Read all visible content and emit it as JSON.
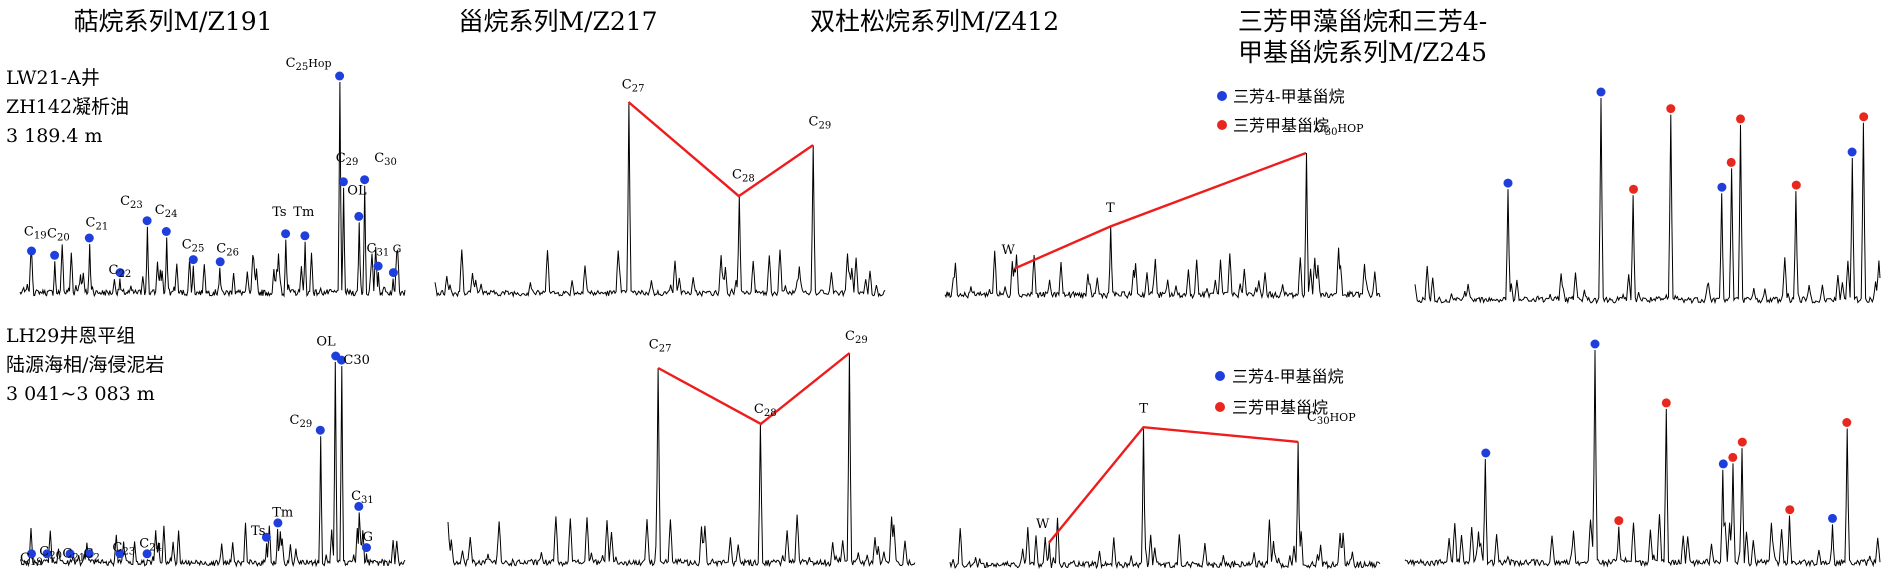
{
  "colors": {
    "trace": "#000000",
    "marker_blue": "#1f3fdc",
    "marker_red": "#e8281e",
    "connector": "#ee1c1c"
  },
  "titles": {
    "terpane": "萜烷系列M/Z191",
    "sterane": "甾烷系列M/Z217",
    "diginane": "双杜松烷系列M/Z412",
    "triaromatic_line1": "三芳甲藻甾烷和三芳4-",
    "triaromatic_line2": "甲基甾烷系列M/Z245"
  },
  "samples": [
    {
      "line1": "LW21-A井",
      "line2": "ZH142凝析油",
      "line3": "3 189.4 m"
    },
    {
      "line1": "LH29井恩平组",
      "line2": "陆源海相/海侵泥岩",
      "line3": "3 041~3 083 m"
    }
  ],
  "legend": {
    "blue_label": "三芳4-甲基甾烷",
    "red_label": "三芳甲基甾烷"
  },
  "chart_data": [
    {
      "type": "line",
      "sample": 0,
      "panel": "terpane",
      "peaks": [
        {
          "name": "C19",
          "x": 0.03,
          "y": 0.19
        },
        {
          "name": "C20",
          "x": 0.09,
          "y": 0.17
        },
        {
          "name": "C21",
          "x": 0.18,
          "y": 0.25
        },
        {
          "name": "C22",
          "x": 0.26,
          "y": 0.09
        },
        {
          "name": "C23",
          "x": 0.33,
          "y": 0.33
        },
        {
          "name": "C24",
          "x": 0.38,
          "y": 0.28
        },
        {
          "name": "C25",
          "x": 0.45,
          "y": 0.15
        },
        {
          "name": "C26",
          "x": 0.52,
          "y": 0.14
        },
        {
          "name": "Ts",
          "x": 0.69,
          "y": 0.27
        },
        {
          "name": "Tm",
          "x": 0.74,
          "y": 0.26
        },
        {
          "name": "C29",
          "x": 0.84,
          "y": 0.51
        },
        {
          "name": "OL",
          "x": 0.88,
          "y": 0.35
        },
        {
          "name": "C30",
          "x": 0.895,
          "y": 0.52
        },
        {
          "name": "C25Hop",
          "x": 0.83,
          "y": 1.0
        },
        {
          "name": "C31",
          "x": 0.93,
          "y": 0.12
        },
        {
          "name": "G",
          "x": 0.97,
          "y": 0.09
        }
      ],
      "labels": [
        {
          "text": "C",
          "sub": "19",
          "x": 0.01,
          "y": 0.29
        },
        {
          "text": "C",
          "sub": "20",
          "x": 0.07,
          "y": 0.28
        },
        {
          "text": "C",
          "sub": "21",
          "x": 0.17,
          "y": 0.33
        },
        {
          "text": "C",
          "sub": "22",
          "x": 0.23,
          "y": 0.11
        },
        {
          "text": "C",
          "sub": "23",
          "x": 0.26,
          "y": 0.43
        },
        {
          "text": "C",
          "sub": "24",
          "x": 0.35,
          "y": 0.39
        },
        {
          "text": "C",
          "sub": "25",
          "x": 0.42,
          "y": 0.23
        },
        {
          "text": "C",
          "sub": "26",
          "x": 0.51,
          "y": 0.21
        },
        {
          "text": "Ts",
          "x": 0.655,
          "y": 0.38
        },
        {
          "text": "Tm",
          "x": 0.71,
          "y": 0.38
        },
        {
          "text": "C",
          "sub": "25",
          "tail": "Hop",
          "x": 0.69,
          "y": 1.07
        },
        {
          "text": "C",
          "sub": "29",
          "x": 0.82,
          "y": 0.63
        },
        {
          "text": "C",
          "sub": "30",
          "x": 0.92,
          "y": 0.63
        },
        {
          "text": "OL",
          "x": 0.85,
          "y": 0.48
        },
        {
          "text": "C",
          "sub": "31",
          "tail": " G",
          "x": 0.9,
          "y": 0.21
        }
      ]
    },
    {
      "type": "line",
      "sample": 0,
      "panel": "sterane",
      "peaks": [
        {
          "name": "C27",
          "x": 0.43,
          "y": 1.0
        },
        {
          "name": "C28",
          "x": 0.675,
          "y": 0.52
        },
        {
          "name": "C29",
          "x": 0.84,
          "y": 0.78
        }
      ],
      "connector": true,
      "labels": [
        {
          "text": "C",
          "sub": "27",
          "x": 0.415,
          "y": 1.07
        },
        {
          "text": "C",
          "sub": "28",
          "x": 0.66,
          "y": 0.61
        },
        {
          "text": "C",
          "sub": "29",
          "x": 0.83,
          "y": 0.88
        }
      ]
    },
    {
      "type": "line",
      "sample": 0,
      "panel": "diginane",
      "peaks": [
        {
          "name": "W",
          "x": 0.16,
          "y": 0.15
        },
        {
          "name": "T",
          "x": 0.38,
          "y": 0.35
        },
        {
          "name": "C30HOP",
          "x": 0.83,
          "y": 0.7
        }
      ],
      "connector": true,
      "labels": [
        {
          "text": "W",
          "x": 0.13,
          "y": 0.22
        },
        {
          "text": "T",
          "x": 0.37,
          "y": 0.42
        },
        {
          "text": "C",
          "sub": "30",
          "tail": "HOP",
          "x": 0.85,
          "y": 0.8
        }
      ]
    },
    {
      "type": "line",
      "sample": 0,
      "panel": "triaromatic",
      "peaks": [
        {
          "name": "p1",
          "x": 0.2,
          "y": 0.56,
          "color": "blue"
        },
        {
          "name": "p2",
          "x": 0.4,
          "y": 1.0,
          "color": "blue"
        },
        {
          "name": "p3",
          "x": 0.47,
          "y": 0.53,
          "color": "red"
        },
        {
          "name": "p4",
          "x": 0.55,
          "y": 0.92,
          "color": "red"
        },
        {
          "name": "p5",
          "x": 0.66,
          "y": 0.54,
          "color": "blue"
        },
        {
          "name": "p6",
          "x": 0.68,
          "y": 0.66,
          "color": "red"
        },
        {
          "name": "p7",
          "x": 0.7,
          "y": 0.87,
          "color": "red"
        },
        {
          "name": "p8",
          "x": 0.82,
          "y": 0.55,
          "color": "red"
        },
        {
          "name": "p9",
          "x": 0.94,
          "y": 0.71,
          "color": "blue"
        },
        {
          "name": "p10",
          "x": 0.965,
          "y": 0.88,
          "color": "red"
        }
      ]
    },
    {
      "type": "line",
      "sample": 1,
      "panel": "terpane",
      "peaks": [
        {
          "name": "C19",
          "x": 0.03,
          "y": 0.04
        },
        {
          "name": "C20",
          "x": 0.07,
          "y": 0.04
        },
        {
          "name": "C21",
          "x": 0.13,
          "y": 0.04
        },
        {
          "name": "C22",
          "x": 0.18,
          "y": 0.04
        },
        {
          "name": "C23",
          "x": 0.26,
          "y": 0.04
        },
        {
          "name": "C24",
          "x": 0.33,
          "y": 0.04
        },
        {
          "name": "Ts",
          "x": 0.64,
          "y": 0.12
        },
        {
          "name": "Tm",
          "x": 0.67,
          "y": 0.19
        },
        {
          "name": "C29",
          "x": 0.78,
          "y": 0.64
        },
        {
          "name": "OL",
          "x": 0.82,
          "y": 1.0
        },
        {
          "name": "C30",
          "x": 0.835,
          "y": 0.98
        },
        {
          "name": "C31",
          "x": 0.88,
          "y": 0.27
        },
        {
          "name": "G",
          "x": 0.9,
          "y": 0.07
        }
      ],
      "labels": [
        {
          "text": "C",
          "sub": "19",
          "x": 0.0,
          "y": 0.03
        },
        {
          "text": "C",
          "sub": "20",
          "x": 0.05,
          "y": 0.06
        },
        {
          "text": "C",
          "sub": "21",
          "x": 0.11,
          "y": 0.05
        },
        {
          "text": "C",
          "sub": "2",
          "x": 0.165,
          "y": 0.05
        },
        {
          "text": "C",
          "sub": "23",
          "x": 0.24,
          "y": 0.08
        },
        {
          "text": "C",
          "sub": "24",
          "x": 0.31,
          "y": 0.1
        },
        {
          "text": "Ts",
          "x": 0.6,
          "y": 0.16
        },
        {
          "text": "Tm",
          "x": 0.655,
          "y": 0.25
        },
        {
          "text": "C",
          "sub": "29",
          "x": 0.7,
          "y": 0.7
        },
        {
          "text": "OL",
          "x": 0.77,
          "y": 1.08
        },
        {
          "text": "C30",
          "x": 0.84,
          "y": 0.99
        },
        {
          "text": "C",
          "sub": "31",
          "x": 0.86,
          "y": 0.33
        },
        {
          "text": "G",
          "x": 0.89,
          "y": 0.13
        }
      ]
    },
    {
      "type": "line",
      "sample": 1,
      "panel": "sterane",
      "peaks": [
        {
          "name": "C27",
          "x": 0.45,
          "y": 0.93
        },
        {
          "name": "C28",
          "x": 0.67,
          "y": 0.67
        },
        {
          "name": "C29",
          "x": 0.86,
          "y": 1.0
        }
      ],
      "connector": true,
      "labels": [
        {
          "text": "C",
          "sub": "27",
          "x": 0.43,
          "y": 1.02
        },
        {
          "text": "C",
          "sub": "28",
          "x": 0.655,
          "y": 0.72
        },
        {
          "text": "C",
          "sub": "29",
          "x": 0.85,
          "y": 1.06
        }
      ]
    },
    {
      "type": "line",
      "sample": 1,
      "panel": "diginane",
      "peaks": [
        {
          "name": "W",
          "x": 0.23,
          "y": 0.13
        },
        {
          "name": "T",
          "x": 0.45,
          "y": 0.68
        },
        {
          "name": "C30HOP",
          "x": 0.81,
          "y": 0.61
        }
      ],
      "connector": true,
      "labels": [
        {
          "text": "W",
          "x": 0.2,
          "y": 0.2
        },
        {
          "text": "T",
          "x": 0.44,
          "y": 0.75
        },
        {
          "text": "C",
          "sub": "30",
          "tail": "HOP",
          "x": 0.83,
          "y": 0.71
        }
      ]
    },
    {
      "type": "line",
      "sample": 1,
      "panel": "triaromatic",
      "peaks": [
        {
          "name": "p1",
          "x": 0.17,
          "y": 0.5,
          "color": "blue"
        },
        {
          "name": "p2",
          "x": 0.4,
          "y": 1.0,
          "color": "blue"
        },
        {
          "name": "p3",
          "x": 0.45,
          "y": 0.19,
          "color": "red"
        },
        {
          "name": "p4",
          "x": 0.55,
          "y": 0.73,
          "color": "red"
        },
        {
          "name": "p5",
          "x": 0.67,
          "y": 0.45,
          "color": "blue"
        },
        {
          "name": "p6",
          "x": 0.69,
          "y": 0.48,
          "color": "red"
        },
        {
          "name": "p7",
          "x": 0.71,
          "y": 0.55,
          "color": "red"
        },
        {
          "name": "p8",
          "x": 0.81,
          "y": 0.24,
          "color": "red"
        },
        {
          "name": "p9",
          "x": 0.9,
          "y": 0.2,
          "color": "blue"
        },
        {
          "name": "p10",
          "x": 0.93,
          "y": 0.64,
          "color": "red"
        }
      ]
    }
  ]
}
